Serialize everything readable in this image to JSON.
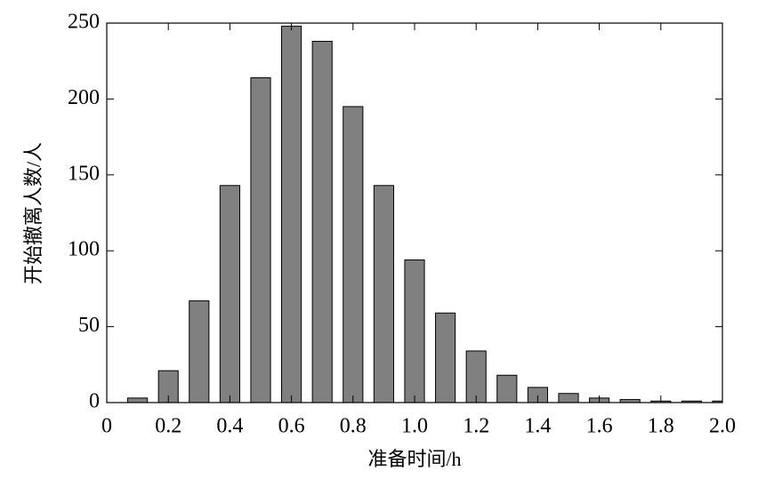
{
  "chart_data": {
    "type": "bar",
    "xlabel": "准备时间/h",
    "ylabel": "开始撤离人数/人",
    "x": [
      0.1,
      0.2,
      0.3,
      0.4,
      0.5,
      0.6,
      0.7,
      0.8,
      0.9,
      1.0,
      1.1,
      1.2,
      1.3,
      1.4,
      1.5,
      1.6,
      1.7,
      1.8,
      1.9,
      2.0
    ],
    "values": [
      3,
      21,
      67,
      143,
      214,
      248,
      238,
      195,
      143,
      94,
      59,
      34,
      18,
      10,
      6,
      3,
      2,
      1,
      1,
      1
    ],
    "color": "#808080",
    "xlim": [
      0,
      2.0
    ],
    "xticks": [
      0,
      0.2,
      0.4,
      0.6,
      0.8,
      {
        "value": 1.0,
        "label": "1.0"
      },
      1.2,
      1.4,
      1.6,
      1.8,
      {
        "value": 2.0,
        "label": "2.0"
      }
    ],
    "ylim": [
      0,
      250
    ],
    "yticks": [
      0,
      50,
      100,
      150,
      200,
      250
    ]
  }
}
